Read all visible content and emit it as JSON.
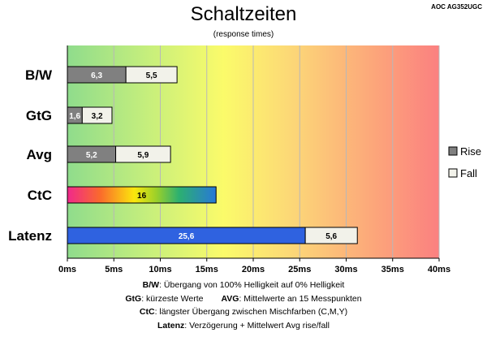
{
  "model": "AOC AG352UGC",
  "colors": {
    "rise": "#808080",
    "fall": "#f2f2ea",
    "latenz": "#2f62e0",
    "latenz_fall": "#f2f2ea"
  },
  "chart_data": {
    "type": "bar",
    "orientation": "horizontal",
    "stacked": true,
    "title": "Schaltzeiten",
    "subtitle": "(response times)",
    "categories": [
      "B/W",
      "GtG",
      "Avg",
      "CtC",
      "Latenz"
    ],
    "series": [
      {
        "name": "Rise",
        "values": [
          6.3,
          1.6,
          5.2,
          null,
          null
        ]
      },
      {
        "name": "Fall",
        "values": [
          5.5,
          3.2,
          5.9,
          null,
          null
        ]
      }
    ],
    "ctc_value": 16,
    "latenz_values": [
      25.6,
      5.6
    ],
    "value_labels": {
      "bw": [
        "6,3",
        "5,5"
      ],
      "gtg": [
        "1,6",
        "3,2"
      ],
      "avg": [
        "5,2",
        "5,9"
      ],
      "ctc": [
        "16"
      ],
      "latenz": [
        "25,6",
        "5,6"
      ]
    },
    "xlim": [
      0,
      40
    ],
    "xticks": [
      0,
      5,
      10,
      15,
      20,
      25,
      30,
      35,
      40
    ],
    "xtick_labels": [
      "0ms",
      "5ms",
      "10ms",
      "15ms",
      "20ms",
      "25ms",
      "30ms",
      "35ms",
      "40ms"
    ],
    "grid": true,
    "legend_position": "right"
  },
  "notes": {
    "line1_key": "B/W",
    "line1_text": ":  Übergang von 100% Helligkeit auf 0% Helligkeit",
    "line2_key_a": "GtG",
    "line2_text_a": ": kürzeste  Werte",
    "line2_key_b": "AVG",
    "line2_text_b": ": Mittelwerte  an 15 Messpunkten",
    "line3_key": "CtC",
    "line3_text": ": längster Übergang  zwischen Mischfarben  (C,M,Y)",
    "line4_key": "Latenz",
    "line4_text": ": Verzögerung  + Mittelwert  Avg rise/fall"
  }
}
